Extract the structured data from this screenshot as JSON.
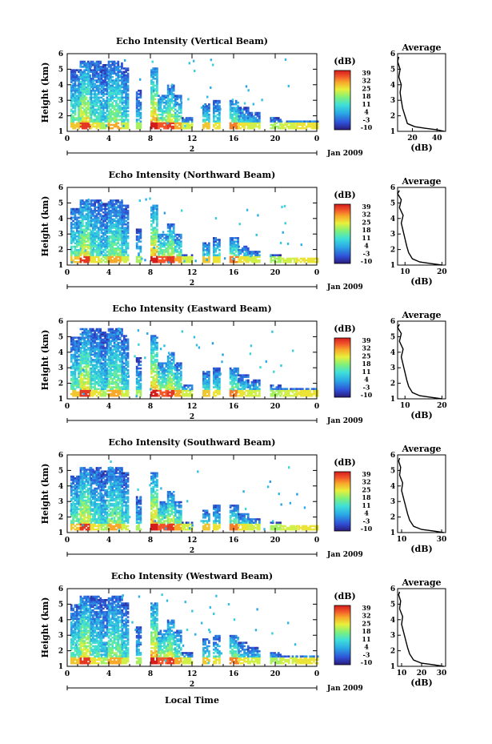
{
  "date_label": "Jan 2009",
  "day_label": "2",
  "x_axis_title": "Local Time",
  "colorbar_unit": "(dB)",
  "avg_title": "Average",
  "avg_xlabel": "(dB)",
  "chart_data": [
    {
      "type": "heatmap",
      "title": "Echo Intensity (Vertical Beam)",
      "ylabel": "Height (km)",
      "xlabel": "",
      "xlim": [
        0,
        24
      ],
      "ylim": [
        1,
        6
      ],
      "x_ticks": [
        "0",
        "4",
        "8",
        "12",
        "16",
        "20",
        "0"
      ],
      "y_ticks": [
        "1",
        "2",
        "3",
        "4",
        "5",
        "6"
      ],
      "colorbar": {
        "unit": "(dB)",
        "ticks": [
          "39",
          "32",
          "25",
          "18",
          "11",
          "4",
          "-3",
          "-10"
        ],
        "range": [
          -10,
          39
        ]
      },
      "average": {
        "title": "Average",
        "xlabel": "(dB)",
        "xticks": [
          "20",
          "40"
        ],
        "xlim": [
          8,
          47
        ],
        "profile": [
          [
            46,
            1.0
          ],
          [
            40,
            1.1
          ],
          [
            30,
            1.2
          ],
          [
            22,
            1.3
          ],
          [
            16,
            1.5
          ],
          [
            14,
            2.0
          ],
          [
            12,
            2.5
          ],
          [
            11,
            3.0
          ],
          [
            10,
            3.5
          ],
          [
            11,
            4.0
          ],
          [
            9,
            4.5
          ],
          [
            10,
            5.0
          ],
          [
            8,
            5.5
          ],
          [
            9,
            5.8
          ]
        ]
      }
    },
    {
      "type": "heatmap",
      "title": "Echo Intensity (Northward Beam)",
      "ylabel": "Height (km)",
      "xlabel": "",
      "xlim": [
        0,
        24
      ],
      "ylim": [
        1,
        6
      ],
      "x_ticks": [
        "0",
        "4",
        "8",
        "12",
        "16",
        "20",
        "0"
      ],
      "y_ticks": [
        "1",
        "2",
        "3",
        "4",
        "5",
        "6"
      ],
      "colorbar": {
        "unit": "(dB)",
        "ticks": [
          "39",
          "32",
          "25",
          "18",
          "11",
          "4",
          "-3",
          "-10"
        ],
        "range": [
          -10,
          39
        ]
      },
      "average": {
        "title": "Average",
        "xlabel": "(dB)",
        "xticks": [
          "10",
          "20"
        ],
        "xlim": [
          8,
          21
        ],
        "profile": [
          [
            20,
            1.0
          ],
          [
            17,
            1.1
          ],
          [
            14,
            1.2
          ],
          [
            12,
            1.4
          ],
          [
            11,
            1.8
          ],
          [
            10.5,
            2.2
          ],
          [
            10,
            2.7
          ],
          [
            9.5,
            3.2
          ],
          [
            9,
            3.7
          ],
          [
            9.5,
            4.2
          ],
          [
            8.5,
            4.7
          ],
          [
            9,
            5.2
          ],
          [
            8,
            5.6
          ],
          [
            8.5,
            5.8
          ]
        ]
      }
    },
    {
      "type": "heatmap",
      "title": "Echo Intensity (Eastward Beam)",
      "ylabel": "Height (km)",
      "xlabel": "",
      "xlim": [
        0,
        24
      ],
      "ylim": [
        1,
        6
      ],
      "x_ticks": [
        "0",
        "4",
        "8",
        "12",
        "16",
        "20",
        "0"
      ],
      "y_ticks": [
        "1",
        "2",
        "3",
        "4",
        "5",
        "6"
      ],
      "colorbar": {
        "unit": "(dB)",
        "ticks": [
          "39",
          "32",
          "25",
          "18",
          "11",
          "4",
          "-3",
          "-10"
        ],
        "range": [
          -10,
          39
        ]
      },
      "average": {
        "title": "Average",
        "xlabel": "(dB)",
        "xticks": [
          "10",
          "20"
        ],
        "xlim": [
          8,
          21
        ],
        "profile": [
          [
            20,
            1.0
          ],
          [
            17,
            1.1
          ],
          [
            14,
            1.2
          ],
          [
            12,
            1.4
          ],
          [
            11,
            1.8
          ],
          [
            10.5,
            2.2
          ],
          [
            10,
            2.7
          ],
          [
            9.5,
            3.2
          ],
          [
            9,
            3.7
          ],
          [
            9.5,
            4.2
          ],
          [
            8.5,
            4.7
          ],
          [
            9,
            5.2
          ],
          [
            8,
            5.6
          ],
          [
            8.5,
            5.8
          ]
        ]
      }
    },
    {
      "type": "heatmap",
      "title": "Echo Intensity (Southward Beam)",
      "ylabel": "Height (km)",
      "xlabel": "",
      "xlim": [
        0,
        24
      ],
      "ylim": [
        1,
        6
      ],
      "x_ticks": [
        "0",
        "4",
        "8",
        "12",
        "16",
        "20",
        "0"
      ],
      "y_ticks": [
        "1",
        "2",
        "3",
        "4",
        "5",
        "6"
      ],
      "colorbar": {
        "unit": "(dB)",
        "ticks": [
          "39",
          "32",
          "25",
          "18",
          "11",
          "4",
          "-3",
          "-10"
        ],
        "range": [
          -10,
          39
        ]
      },
      "average": {
        "title": "Average",
        "xlabel": "(dB)",
        "xticks": [
          "10",
          "30"
        ],
        "xlim": [
          8,
          32
        ],
        "profile": [
          [
            31,
            1.0
          ],
          [
            26,
            1.1
          ],
          [
            20,
            1.2
          ],
          [
            16,
            1.4
          ],
          [
            14,
            1.8
          ],
          [
            13,
            2.2
          ],
          [
            12,
            2.7
          ],
          [
            11,
            3.2
          ],
          [
            10,
            3.7
          ],
          [
            10.5,
            4.2
          ],
          [
            9,
            4.7
          ],
          [
            9.5,
            5.2
          ],
          [
            8.5,
            5.6
          ],
          [
            9,
            5.8
          ]
        ]
      }
    },
    {
      "type": "heatmap",
      "title": "Echo Intensity (Westward Beam)",
      "ylabel": "Height (km)",
      "xlabel": "Local Time",
      "xlim": [
        0,
        24
      ],
      "ylim": [
        1,
        6
      ],
      "x_ticks": [
        "0",
        "4",
        "8",
        "12",
        "16",
        "20",
        "0"
      ],
      "y_ticks": [
        "1",
        "2",
        "3",
        "4",
        "5",
        "6"
      ],
      "colorbar": {
        "unit": "(dB)",
        "ticks": [
          "39",
          "32",
          "25",
          "18",
          "11",
          "4",
          "-3",
          "-10"
        ],
        "range": [
          -10,
          39
        ]
      },
      "average": {
        "title": "Average",
        "xlabel": "(dB)",
        "xticks": [
          "10",
          "20",
          "30"
        ],
        "xlim": [
          8,
          32
        ],
        "profile": [
          [
            31,
            1.0
          ],
          [
            26,
            1.1
          ],
          [
            20,
            1.2
          ],
          [
            16,
            1.4
          ],
          [
            14,
            1.8
          ],
          [
            13,
            2.2
          ],
          [
            12,
            2.7
          ],
          [
            11,
            3.2
          ],
          [
            10,
            3.7
          ],
          [
            10.5,
            4.2
          ],
          [
            9,
            4.7
          ],
          [
            9.5,
            5.2
          ],
          [
            8.5,
            5.6
          ],
          [
            9,
            5.8
          ]
        ]
      }
    }
  ]
}
